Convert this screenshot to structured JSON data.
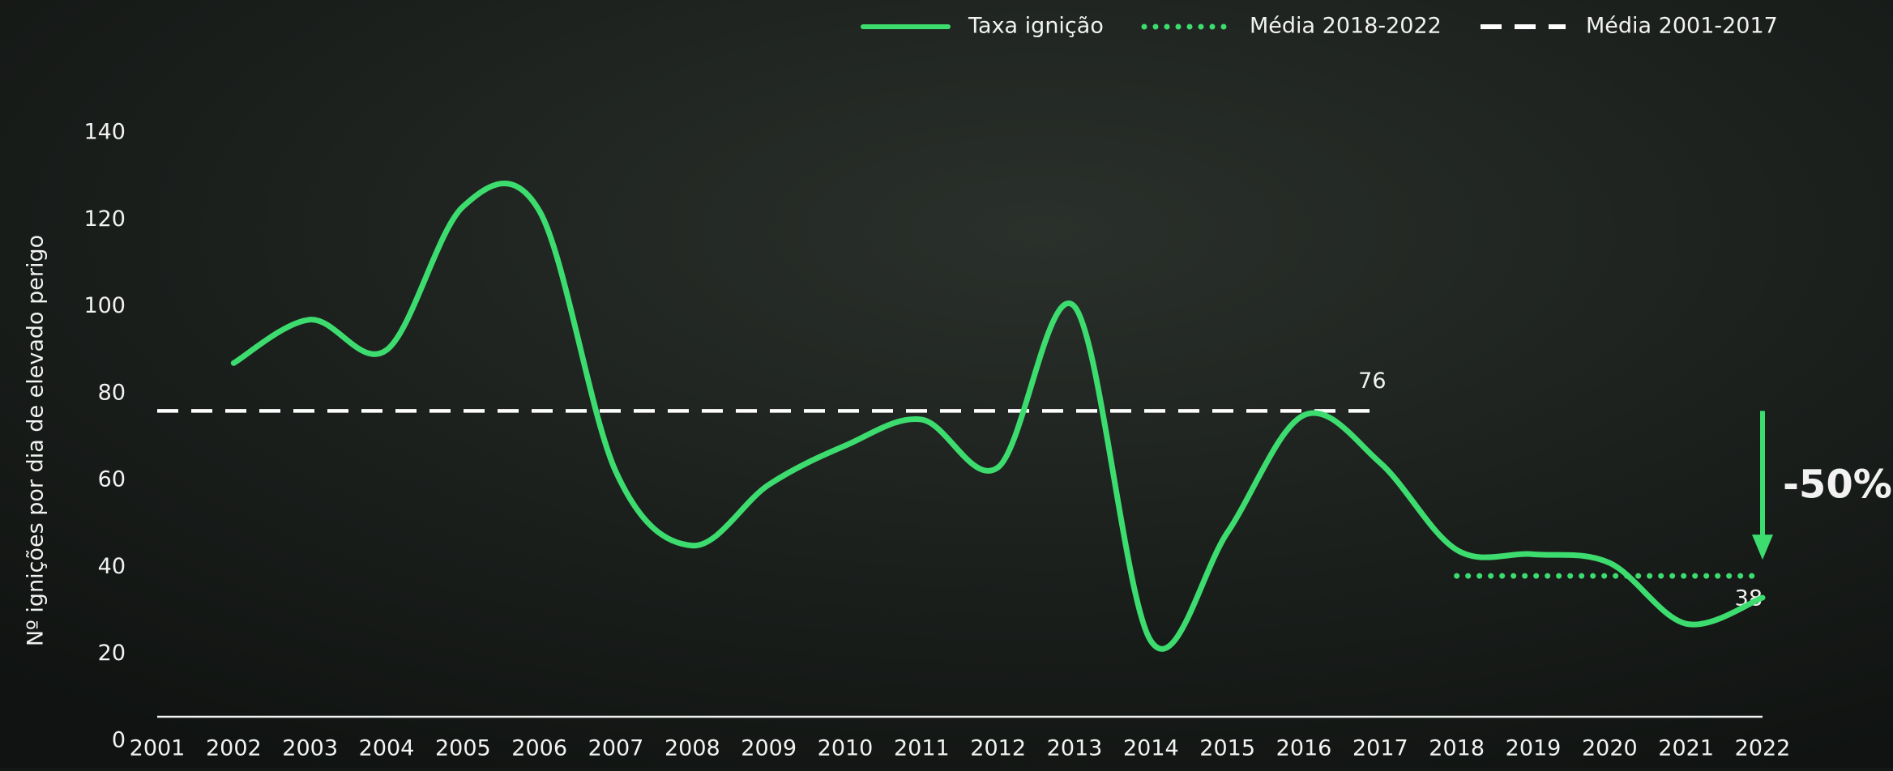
{
  "chart_data": {
    "type": "line",
    "y_label": "Nº ignições por dia de elevado perigo",
    "x": [
      2002,
      2003,
      2004,
      2005,
      2006,
      2007,
      2008,
      2009,
      2010,
      2011,
      2012,
      2013,
      2014,
      2015,
      2016,
      2017,
      2018,
      2019,
      2020,
      2021,
      2022
    ],
    "series": [
      {
        "name": "Taxa ignição",
        "color": "#3ddc6e",
        "values": [
          87,
          97,
          90,
          123,
          122,
          62,
          45,
          59,
          68,
          74,
          63,
          100,
          23,
          48,
          75,
          64,
          44,
          43,
          41,
          27,
          33
        ]
      }
    ],
    "reference_lines": [
      {
        "name": "Média 2018-2022",
        "value": 38,
        "x_range": [
          2018,
          2022
        ],
        "style": "dotted",
        "color": "#3ddc6e"
      },
      {
        "name": "Média 2001-2017",
        "value": 76,
        "x_range": [
          2001,
          2017
        ],
        "style": "dashed",
        "color": "#ffffff"
      }
    ],
    "annotation": "-50%",
    "xlim": [
      2001,
      2022
    ],
    "xticks": [
      2001,
      2002,
      2003,
      2004,
      2005,
      2006,
      2007,
      2008,
      2009,
      2010,
      2011,
      2012,
      2013,
      2014,
      2015,
      2016,
      2017,
      2018,
      2019,
      2020,
      2021,
      2022
    ],
    "ylim": [
      0,
      140
    ],
    "yticks": [
      0,
      20,
      40,
      60,
      80,
      100,
      120,
      140
    ],
    "grid": false
  }
}
